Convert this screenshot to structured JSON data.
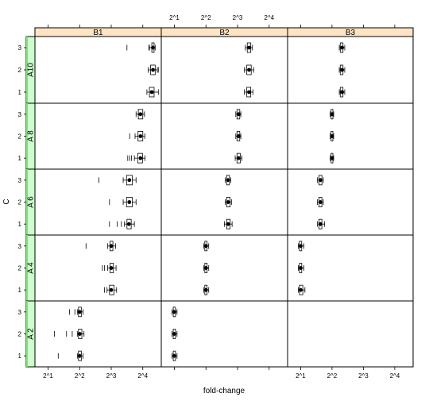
{
  "chart_data": {
    "type": "boxplot",
    "xlabel": "fold-change",
    "ylabel": "C",
    "x_scale": "log2",
    "xlim": [
      1.5,
      24
    ],
    "x_tick_labels": [
      "2^1",
      "2^2",
      "2^3",
      "2^4"
    ],
    "x_tick_values": [
      2,
      4,
      8,
      16
    ],
    "y_levels": [
      "1",
      "2",
      "3"
    ],
    "column_factor": [
      "B1",
      "B2",
      "B3"
    ],
    "row_factor": [
      "A 2",
      "A 4",
      "A 6",
      "A 8",
      "A10"
    ],
    "colors": {
      "column_strip": "#ffe4c4",
      "row_strip": "#ccffcc",
      "row_strip_accent": "#7fe07f",
      "box": "#000000",
      "outlier": "#000000"
    },
    "panels": [
      {
        "row": "A10",
        "col": "B1",
        "boxes": [
          {
            "level": "1",
            "low": 17.5,
            "q1": 18.5,
            "median": 19.5,
            "q3": 20.5,
            "high": 22.5,
            "outliers": []
          },
          {
            "level": "2",
            "low": 18.0,
            "q1": 19.0,
            "median": 20.0,
            "q3": 21.0,
            "high": 22.0,
            "outliers": [
              22.5
            ]
          },
          {
            "level": "3",
            "low": 18.5,
            "q1": 19.5,
            "median": 20.0,
            "q3": 20.5,
            "high": 21.0,
            "outliers": [
              11.3,
              18.3
            ]
          }
        ]
      },
      {
        "row": "A10",
        "col": "B2",
        "boxes": [
          {
            "level": "1",
            "low": 9.3,
            "q1": 9.8,
            "median": 10.3,
            "q3": 10.7,
            "high": 11.2,
            "outliers": []
          },
          {
            "level": "2",
            "low": 9.3,
            "q1": 9.8,
            "median": 10.3,
            "q3": 10.8,
            "high": 11.4,
            "outliers": []
          },
          {
            "level": "3",
            "low": 9.5,
            "q1": 9.9,
            "median": 10.3,
            "q3": 10.7,
            "high": 11.1,
            "outliers": []
          }
        ]
      },
      {
        "row": "A10",
        "col": "B3",
        "boxes": [
          {
            "level": "1",
            "low": 4.7,
            "q1": 4.8,
            "median": 5.0,
            "q3": 5.1,
            "high": 5.3,
            "outliers": []
          },
          {
            "level": "2",
            "low": 4.7,
            "q1": 4.8,
            "median": 5.0,
            "q3": 5.1,
            "high": 5.3,
            "outliers": []
          },
          {
            "level": "3",
            "low": 4.7,
            "q1": 4.8,
            "median": 5.0,
            "q3": 5.1,
            "high": 5.3,
            "outliers": []
          }
        ]
      },
      {
        "row": "A 8",
        "col": "B1",
        "boxes": [
          {
            "level": "1",
            "low": 13.3,
            "q1": 14.3,
            "median": 15.2,
            "q3": 15.9,
            "high": 16.8,
            "outliers": [
              11.5,
              12.0,
              12.5
            ]
          },
          {
            "level": "2",
            "low": 13.5,
            "q1": 14.4,
            "median": 15.2,
            "q3": 16.0,
            "high": 16.7,
            "outliers": [
              12.0
            ]
          },
          {
            "level": "3",
            "low": 13.8,
            "q1": 14.5,
            "median": 15.2,
            "q3": 16.0,
            "high": 16.6,
            "outliers": []
          }
        ]
      },
      {
        "row": "A 8",
        "col": "B2",
        "boxes": [
          {
            "level": "1",
            "low": 7.6,
            "q1": 7.9,
            "median": 8.2,
            "q3": 8.5,
            "high": 8.8,
            "outliers": []
          },
          {
            "level": "2",
            "low": 7.7,
            "q1": 7.9,
            "median": 8.2,
            "q3": 8.4,
            "high": 8.6,
            "outliers": []
          },
          {
            "level": "3",
            "low": 7.7,
            "q1": 7.9,
            "median": 8.2,
            "q3": 8.4,
            "high": 8.6,
            "outliers": []
          }
        ]
      },
      {
        "row": "A 8",
        "col": "B3",
        "boxes": [
          {
            "level": "1",
            "low": 3.85,
            "q1": 3.92,
            "median": 4.0,
            "q3": 4.08,
            "high": 4.15,
            "outliers": []
          },
          {
            "level": "2",
            "low": 3.85,
            "q1": 3.92,
            "median": 4.0,
            "q3": 4.08,
            "high": 4.15,
            "outliers": []
          },
          {
            "level": "3",
            "low": 3.85,
            "q1": 3.92,
            "median": 4.0,
            "q3": 4.08,
            "high": 4.15,
            "outliers": []
          }
        ]
      },
      {
        "row": "A 6",
        "col": "B1",
        "boxes": [
          {
            "level": "1",
            "low": 10.7,
            "q1": 11.3,
            "median": 11.8,
            "q3": 12.4,
            "high": 13.3,
            "outliers": [
              7.7,
              9.1,
              10.0
            ]
          },
          {
            "level": "2",
            "low": 10.4,
            "q1": 11.2,
            "median": 11.9,
            "q3": 12.7,
            "high": 13.8,
            "outliers": [
              7.7
            ]
          },
          {
            "level": "3",
            "low": 10.4,
            "q1": 11.2,
            "median": 11.9,
            "q3": 12.7,
            "high": 13.8,
            "outliers": [
              6.1
            ]
          }
        ]
      },
      {
        "row": "A 6",
        "col": "B2",
        "boxes": [
          {
            "level": "1",
            "low": 6.0,
            "q1": 6.3,
            "median": 6.5,
            "q3": 6.8,
            "high": 7.1,
            "outliers": []
          },
          {
            "level": "2",
            "low": 6.1,
            "q1": 6.3,
            "median": 6.5,
            "q3": 6.8,
            "high": 7.0,
            "outliers": []
          },
          {
            "level": "3",
            "low": 6.1,
            "q1": 6.3,
            "median": 6.5,
            "q3": 6.7,
            "high": 6.9,
            "outliers": []
          }
        ]
      },
      {
        "row": "A 6",
        "col": "B3",
        "boxes": [
          {
            "level": "1",
            "low": 2.9,
            "q1": 3.0,
            "median": 3.1,
            "q3": 3.2,
            "high": 3.4,
            "outliers": []
          },
          {
            "level": "2",
            "low": 2.9,
            "q1": 3.0,
            "median": 3.1,
            "q3": 3.2,
            "high": 3.3,
            "outliers": []
          },
          {
            "level": "3",
            "low": 2.9,
            "q1": 3.0,
            "median": 3.1,
            "q3": 3.2,
            "high": 3.3,
            "outliers": []
          }
        ]
      },
      {
        "row": "A 4",
        "col": "B1",
        "boxes": [
          {
            "level": "1",
            "low": 7.3,
            "q1": 7.7,
            "median": 8.0,
            "q3": 8.5,
            "high": 9.0,
            "outliers": [
              6.9
            ]
          },
          {
            "level": "2",
            "low": 7.4,
            "q1": 7.8,
            "median": 8.0,
            "q3": 8.4,
            "high": 8.9,
            "outliers": [
              6.6,
              6.9
            ]
          },
          {
            "level": "3",
            "low": 7.4,
            "q1": 7.8,
            "median": 8.0,
            "q3": 8.3,
            "high": 8.8,
            "outliers": [
              4.6
            ]
          }
        ]
      },
      {
        "row": "A 4",
        "col": "B2",
        "boxes": [
          {
            "level": "1",
            "low": 3.8,
            "q1": 3.9,
            "median": 4.0,
            "q3": 4.1,
            "high": 4.25,
            "outliers": []
          },
          {
            "level": "2",
            "low": 3.8,
            "q1": 3.9,
            "median": 4.0,
            "q3": 4.1,
            "high": 4.25,
            "outliers": []
          },
          {
            "level": "3",
            "low": 3.8,
            "q1": 3.9,
            "median": 4.0,
            "q3": 4.1,
            "high": 4.25,
            "outliers": []
          }
        ]
      },
      {
        "row": "A 4",
        "col": "B3",
        "boxes": [
          {
            "level": "1",
            "low": 1.9,
            "q1": 1.95,
            "median": 2.0,
            "q3": 2.1,
            "high": 2.2,
            "outliers": []
          },
          {
            "level": "2",
            "low": 1.9,
            "q1": 1.95,
            "median": 2.0,
            "q3": 2.05,
            "high": 2.15,
            "outliers": []
          },
          {
            "level": "3",
            "low": 1.9,
            "q1": 1.95,
            "median": 2.0,
            "q3": 2.05,
            "high": 2.15,
            "outliers": []
          }
        ]
      },
      {
        "row": "A 2",
        "col": "B1",
        "boxes": [
          {
            "level": "1",
            "low": 3.8,
            "q1": 3.9,
            "median": 4.0,
            "q3": 4.15,
            "high": 4.3,
            "outliers": [
              2.5
            ]
          },
          {
            "level": "2",
            "low": 3.8,
            "q1": 3.9,
            "median": 4.0,
            "q3": 4.2,
            "high": 4.4,
            "outliers": [
              2.3,
              3.0,
              3.4
            ]
          },
          {
            "level": "3",
            "low": 3.8,
            "q1": 3.9,
            "median": 4.0,
            "q3": 4.15,
            "high": 4.3,
            "outliers": [
              3.2,
              3.6
            ]
          }
        ]
      },
      {
        "row": "A 2",
        "col": "B2",
        "boxes": [
          {
            "level": "1",
            "low": 1.9,
            "q1": 1.95,
            "median": 2.0,
            "q3": 2.05,
            "high": 2.12,
            "outliers": []
          },
          {
            "level": "2",
            "low": 1.9,
            "q1": 1.95,
            "median": 2.0,
            "q3": 2.05,
            "high": 2.12,
            "outliers": []
          },
          {
            "level": "3",
            "low": 1.9,
            "q1": 1.95,
            "median": 2.0,
            "q3": 2.05,
            "high": 2.12,
            "outliers": []
          }
        ]
      },
      {
        "row": "A 2",
        "col": "B3",
        "boxes": []
      }
    ]
  }
}
